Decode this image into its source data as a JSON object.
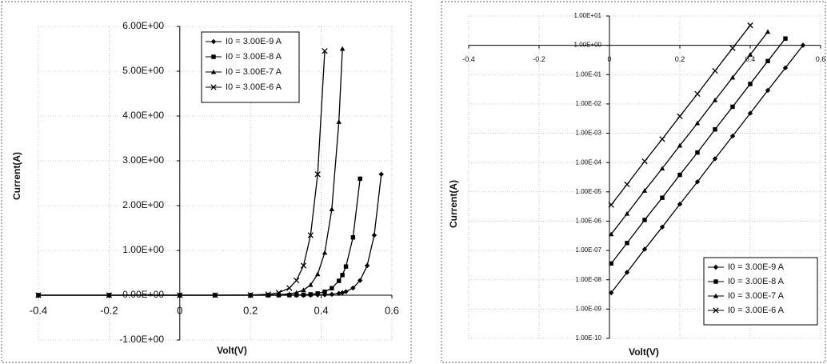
{
  "chart_data": [
    {
      "type": "line",
      "ylabel": "Current(A)",
      "xlabel": "Volt(V)",
      "x": [
        -0.4,
        -0.2,
        0,
        0.1,
        0.2,
        0.25,
        0.28,
        0.31,
        0.33,
        0.35,
        0.37,
        0.39,
        0.41,
        0.43,
        0.45,
        0.46,
        0.47,
        0.49,
        0.51,
        0.53,
        0.55,
        0.57
      ],
      "xlim": [
        -0.4,
        0.6
      ],
      "xticks": [
        -0.4,
        -0.2,
        0,
        0.2,
        0.4,
        0.6
      ],
      "ylim": [
        -1,
        6
      ],
      "yticks": [
        {
          "value": -1,
          "label": "-1.00E+00"
        },
        {
          "value": 0,
          "label": "0.00E+00"
        },
        {
          "value": 1,
          "label": "1.00E+00"
        },
        {
          "value": 2,
          "label": "2.00E+00"
        },
        {
          "value": 3,
          "label": "3.00E+00"
        },
        {
          "value": 4,
          "label": "4.00E+00"
        },
        {
          "value": 5,
          "label": "5.00E+00"
        },
        {
          "value": 6,
          "label": "6.00E+00"
        }
      ],
      "grid": true,
      "log_y": false,
      "legend": "top",
      "series": [
        {
          "name": "I0 = 3.00E-9 A",
          "color": "#000000",
          "marker": "diamond",
          "values": [
            0,
            0,
            0,
            0,
            0,
            0,
            0,
            0,
            0,
            0,
            0,
            0.005,
            0.01,
            0.02,
            0.04,
            0.056,
            0.08,
            0.16,
            0.33,
            0.66,
            1.34,
            2.7
          ]
        },
        {
          "name": "I0 = 3.00E-8 A",
          "color": "#000000",
          "marker": "square",
          "values": [
            0,
            0,
            0,
            0,
            0,
            0,
            0.001,
            0.002,
            0.005,
            0.01,
            0.019,
            0.039,
            0.078,
            0.157,
            0.32,
            0.45,
            0.64,
            1.29,
            2.6,
            null,
            null,
            null
          ]
        },
        {
          "name": "I0 = 3.00E-7 A",
          "color": "#000000",
          "marker": "triangle",
          "values": [
            0,
            0,
            0,
            0,
            0,
            0.0035,
            0.01,
            0.028,
            0.057,
            0.116,
            0.23,
            0.47,
            0.95,
            1.92,
            3.87,
            5.5,
            null,
            null,
            null,
            null,
            null,
            null
          ]
        },
        {
          "name": "I0 = 3.00E-6 A",
          "color": "#000000",
          "marker": "cross",
          "values": [
            0,
            0,
            0,
            0,
            0.0035,
            0.02,
            0.056,
            0.16,
            0.33,
            0.66,
            1.34,
            2.7,
            5.45,
            null,
            null,
            null,
            null,
            null,
            null,
            null,
            null,
            null
          ]
        }
      ]
    },
    {
      "type": "line",
      "ylabel": "Current(A)",
      "xlabel": "Volt(V)",
      "x": [
        0.005,
        0.05,
        0.1,
        0.15,
        0.2,
        0.25,
        0.3,
        0.35,
        0.4,
        0.45,
        0.5,
        0.55
      ],
      "xlim": [
        -0.4,
        0.6
      ],
      "xticks": [
        -0.4,
        -0.2,
        0,
        0.2,
        0.4,
        0.6
      ],
      "ylim": [
        1e-10,
        10
      ],
      "yticks": [
        {
          "value": 1e-10,
          "label": "1.00E-10"
        },
        {
          "value": 1e-09,
          "label": "1.00E-09"
        },
        {
          "value": 1e-08,
          "label": "1.00E-08"
        },
        {
          "value": 1e-07,
          "label": "1.00E-07"
        },
        {
          "value": 1e-06,
          "label": "1.00E-06"
        },
        {
          "value": 1e-05,
          "label": "1.00E-05"
        },
        {
          "value": 0.0001,
          "label": "1.00E-04"
        },
        {
          "value": 0.001,
          "label": "1.00E-03"
        },
        {
          "value": 0.01,
          "label": "1.00E-02"
        },
        {
          "value": 0.1,
          "label": "1.00E-01"
        },
        {
          "value": 1,
          "label": "1.00E+00"
        },
        {
          "value": 10,
          "label": "1.00E+01"
        }
      ],
      "grid": true,
      "log_y": true,
      "legend": "bottom right",
      "series": [
        {
          "name": "I0 = 3.00E-9 A",
          "color": "#000000",
          "marker": "diamond",
          "values": [
            3.6e-09,
            1.8e-08,
            1.1e-07,
            6.3e-07,
            3.8e-06,
            2.2e-05,
            0.000135,
            0.0008,
            0.0048,
            0.029,
            0.17,
            1.0
          ]
        },
        {
          "name": "I0 = 3.00E-8 A",
          "color": "#000000",
          "marker": "square",
          "values": [
            3.6e-08,
            1.8e-07,
            1.1e-06,
            6.3e-06,
            3.8e-05,
            0.00022,
            0.00135,
            0.008,
            0.048,
            0.29,
            1.7,
            null
          ]
        },
        {
          "name": "I0 = 3.00E-7 A",
          "color": "#000000",
          "marker": "triangle",
          "values": [
            3.6e-07,
            1.8e-06,
            1.1e-05,
            6.3e-05,
            0.00038,
            0.0022,
            0.0135,
            0.08,
            0.48,
            2.9,
            null,
            null
          ]
        },
        {
          "name": "I0 = 3.00E-6 A",
          "color": "#000000",
          "marker": "cross",
          "values": [
            3.6e-06,
            1.8e-05,
            0.00011,
            0.00063,
            0.0038,
            0.022,
            0.135,
            0.8,
            4.8,
            null,
            null,
            null
          ]
        }
      ]
    }
  ]
}
